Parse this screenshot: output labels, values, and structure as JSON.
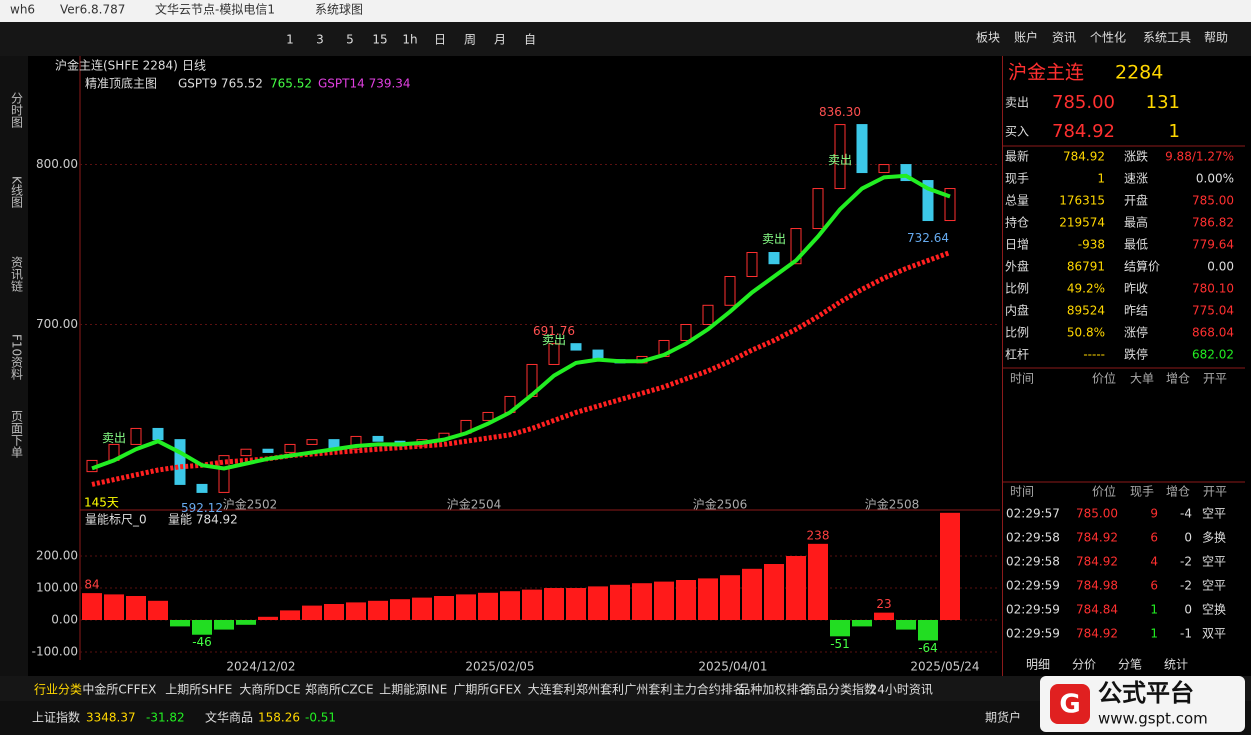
{
  "window": {
    "app": "wh6",
    "version": "Ver6.8.787",
    "server": "文华云节点-模拟电信1",
    "title": "系统球图"
  },
  "toolbar": [
    "1",
    "3",
    "5",
    "15",
    "1h",
    "日",
    "周",
    "月",
    "自"
  ],
  "menus": [
    "板块",
    "账户",
    "资讯",
    "个性化",
    "系统工具",
    "帮助"
  ],
  "side_tabs": [
    "分时图",
    "K线图",
    "资讯链",
    "F10资料",
    "页面下单"
  ],
  "chart_header": {
    "symbol": "沪金主连(SHFE 2284)",
    "period": "日线",
    "indicator": "精准顶底主图",
    "line1": "GSPT9 765.52",
    "line2": "765.52",
    "line3": "GSPT14 739.34"
  },
  "price_chart": {
    "ylim": [
      584,
      856
    ],
    "yticks": [
      {
        "value": 800,
        "label": "800.00"
      },
      {
        "value": 700,
        "label": "700.00"
      }
    ],
    "opens": [
      608,
      615,
      625,
      635,
      628,
      600,
      595,
      618,
      622,
      620,
      625,
      628,
      622,
      630,
      627,
      624,
      628,
      632,
      640,
      645,
      655,
      675,
      688,
      684,
      678,
      676,
      680,
      690,
      700,
      712,
      730,
      745,
      738,
      760,
      785,
      825,
      795,
      800,
      790,
      765
    ],
    "closes": [
      615,
      625,
      635,
      628,
      600,
      595,
      618,
      622,
      620,
      625,
      628,
      622,
      630,
      627,
      624,
      628,
      632,
      640,
      645,
      655,
      675,
      688,
      684,
      678,
      676,
      680,
      690,
      700,
      712,
      730,
      745,
      738,
      760,
      785,
      825,
      795,
      800,
      790,
      765,
      785
    ],
    "ma_fast": [
      610,
      615,
      622,
      627,
      620,
      612,
      610,
      613,
      616,
      618,
      620,
      622,
      624,
      625,
      625,
      626,
      628,
      632,
      638,
      645,
      656,
      668,
      676,
      678,
      677,
      677,
      681,
      688,
      697,
      708,
      720,
      730,
      740,
      755,
      772,
      785,
      792,
      793,
      785,
      780
    ],
    "ma_slow": [
      600,
      603,
      606,
      609,
      611,
      612,
      614,
      615,
      616,
      618,
      619,
      620,
      621,
      622,
      623,
      624,
      625,
      627,
      629,
      631,
      635,
      640,
      645,
      649,
      653,
      657,
      661,
      666,
      671,
      677,
      684,
      690,
      697,
      705,
      714,
      722,
      729,
      735,
      740,
      745
    ],
    "annotations": [
      "836.30",
      "691.76",
      "592.12",
      "732.64",
      "卖出",
      "卖出",
      "卖出",
      "卖出",
      "145天"
    ],
    "contracts": [
      "沪金2502",
      "沪金2504",
      "沪金2506",
      "沪金2508"
    ],
    "dates": [
      "2024/12/02",
      "2025/02/05",
      "2025/04/01",
      "2025/05/24"
    ]
  },
  "volume_chart": {
    "title": "量能标尺_0",
    "label": "量能 784.92",
    "ylim": [
      -125,
      337.5
    ],
    "yticks": [
      {
        "value": 200,
        "label": "200.00"
      },
      {
        "value": 100,
        "label": "100.00"
      },
      {
        "value": 0,
        "label": "0.00"
      },
      {
        "value": -100,
        "label": "-100.00"
      }
    ],
    "values": [
      84,
      80,
      75,
      60,
      -20,
      -46,
      -30,
      -15,
      10,
      30,
      45,
      50,
      55,
      60,
      65,
      70,
      75,
      80,
      85,
      90,
      95,
      100,
      100,
      105,
      110,
      115,
      120,
      125,
      130,
      140,
      160,
      175,
      200,
      238,
      -51,
      -20,
      23,
      -30,
      -64,
      335
    ]
  },
  "quote": {
    "name": "沪金主连",
    "code": "2284",
    "sell": [
      "卖出",
      "785.00",
      "131"
    ],
    "buy": [
      "买入",
      "784.92",
      "1"
    ],
    "rows": [
      [
        "最新",
        "784.92",
        "涨跌",
        "9.88/1.27%"
      ],
      [
        "现手",
        "1",
        "速涨",
        "0.00%"
      ],
      [
        "总量",
        "176315",
        "开盘",
        "785.00"
      ],
      [
        "持仓",
        "219574",
        "最高",
        "786.82"
      ],
      [
        "日增",
        "-938",
        "最低",
        "779.64"
      ],
      [
        "外盘",
        "86791",
        "结算价",
        "0.00"
      ],
      [
        "比例",
        "49.2%",
        "昨收",
        "780.10"
      ],
      [
        "内盘",
        "89524",
        "昨结",
        "775.04"
      ],
      [
        "比例",
        "50.8%",
        "涨停",
        "868.04"
      ],
      [
        "杠杆",
        "-----",
        "跌停",
        "682.02"
      ]
    ]
  },
  "big_orders": {
    "header": [
      "时间",
      "价位",
      "大单",
      "增仓",
      "开平"
    ]
  },
  "trades": {
    "header": [
      "时间",
      "价位",
      "现手",
      "增仓",
      "开平"
    ],
    "rows": [
      [
        "02:29:57",
        "785.00",
        "9",
        "-4",
        "空平"
      ],
      [
        "02:29:58",
        "784.92",
        "6",
        "0",
        "多换"
      ],
      [
        "02:29:58",
        "784.92",
        "4",
        "-2",
        "空平"
      ],
      [
        "02:29:59",
        "784.98",
        "6",
        "-2",
        "空平"
      ],
      [
        "02:29:59",
        "784.84",
        "1",
        "0",
        "空换"
      ],
      [
        "02:29:59",
        "784.92",
        "1",
        "-1",
        "双平"
      ]
    ]
  },
  "detail_tabs": [
    "明细",
    "分价",
    "分笔",
    "统计"
  ],
  "bottom_tabs": [
    "行业分类",
    "中金所CFFEX",
    "上期所SHFE",
    "大商所DCE",
    "郑商所CZCE",
    "上期能源INE",
    "广期所GFEX",
    "大连套利",
    "郑州套利",
    "广州套利",
    "主力合约排名",
    "品种加权排名",
    "商品分类指数",
    "24小时资讯"
  ],
  "ticker": [
    "上证指数",
    "3348.37",
    "-31.82",
    "文华商品",
    "158.26",
    "-0.51",
    "期货户"
  ],
  "logo": {
    "name": "公式平台",
    "url": "www.gspt.com"
  }
}
